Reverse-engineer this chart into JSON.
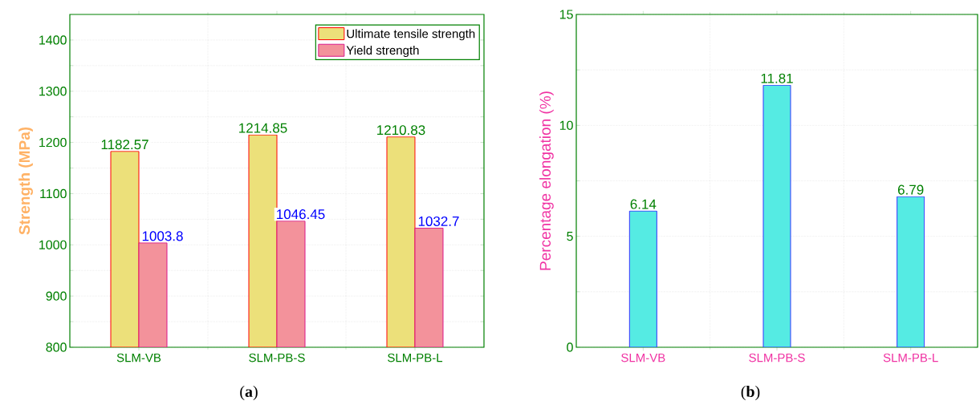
{
  "chart_data": [
    {
      "type": "bar",
      "categories": [
        "SLM-VB",
        "SLM-PB-S",
        "SLM-PB-L"
      ],
      "ylabel": "Strength (MPa)",
      "series": [
        {
          "name": "Ultimate tensile strength",
          "color": "#ece07a",
          "values": [
            1182.57,
            1214.85,
            1210.83
          ]
        },
        {
          "name": "Yield strength",
          "color": "#f3929b",
          "values": [
            1003.8,
            1046.45,
            1032.7
          ]
        }
      ],
      "ylim": [
        800,
        1450
      ],
      "yticks": [
        800,
        {
          "value": 850,
          "label": null
        },
        900,
        {
          "value": 950,
          "label": null
        },
        1000,
        {
          "value": 1050,
          "label": null
        },
        1100,
        {
          "value": 1150,
          "label": null
        },
        1200,
        {
          "value": 1250,
          "label": null
        },
        1300,
        {
          "value": 1350,
          "label": null
        },
        1400
      ],
      "grid": true,
      "legend": "top right",
      "data_labels": true,
      "annotations": [
        "(**a**)"
      ]
    },
    {
      "type": "bar",
      "categories": [
        "SLM-VB",
        "SLM-PB-S",
        "SLM-PB-L"
      ],
      "ylabel": "Percentage elongation (%)",
      "series": [
        {
          "color": "#55ebe3",
          "values": [
            6.14,
            11.81,
            6.79
          ]
        }
      ],
      "ylim": [
        0,
        15
      ],
      "yticks": [
        0,
        {
          "value": 2.5,
          "label": null
        },
        5,
        {
          "value": 7.5,
          "label": null
        },
        10,
        {
          "value": 12.5,
          "label": null
        },
        15
      ],
      "grid": true,
      "data_labels": true,
      "annotations": [
        "(**b**)"
      ]
    }
  ]
}
